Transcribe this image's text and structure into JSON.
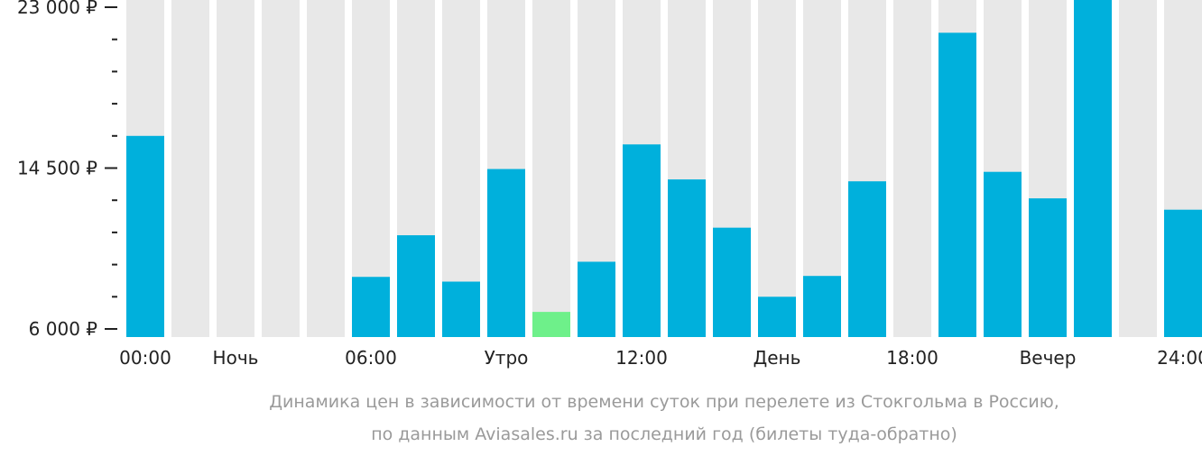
{
  "chart_data": {
    "type": "bar",
    "categories": [
      "00",
      "01",
      "02",
      "03",
      "04",
      "05",
      "06",
      "07",
      "08",
      "09",
      "10",
      "11",
      "12",
      "13",
      "14",
      "15",
      "16",
      "17",
      "18",
      "19",
      "20",
      "21",
      "22",
      "23"
    ],
    "values": [
      16200,
      null,
      null,
      null,
      null,
      8750,
      10950,
      8500,
      14450,
      6900,
      9550,
      15750,
      13900,
      11350,
      7700,
      8800,
      13800,
      null,
      21650,
      14300,
      12900,
      23450,
      null,
      12300
    ],
    "highlight_index": 9,
    "ylim": [
      6000,
      23000
    ],
    "yticks": [
      {
        "value": 6000,
        "label": "6 000 ₽"
      },
      {
        "value": 14500,
        "label": "14 500 ₽"
      },
      {
        "value": 23000,
        "label": "23 000 ₽"
      }
    ],
    "minor_tick_step": 1700,
    "xticks": [
      {
        "index": 0,
        "label": "00:00"
      },
      {
        "index": 2,
        "label": "Ночь"
      },
      {
        "index": 5,
        "label": "06:00"
      },
      {
        "index": 8,
        "label": "Утро"
      },
      {
        "index": 11,
        "label": "12:00"
      },
      {
        "index": 14,
        "label": "День"
      },
      {
        "index": 17,
        "label": "18:00"
      },
      {
        "index": 20,
        "label": "Вечер"
      },
      {
        "index": 23,
        "label": "24:00"
      }
    ],
    "caption_lines": [
      "Динамика цен в зависимости от времени суток при перелете из Стокгольма в Россию,",
      "по данным Aviasales.ru за последний год (билеты туда-обратно)"
    ],
    "colors": {
      "bar": "#00b0dc",
      "highlight": "#6ef08a",
      "background_bar": "#e8e8e8",
      "tick": "#222222"
    }
  }
}
